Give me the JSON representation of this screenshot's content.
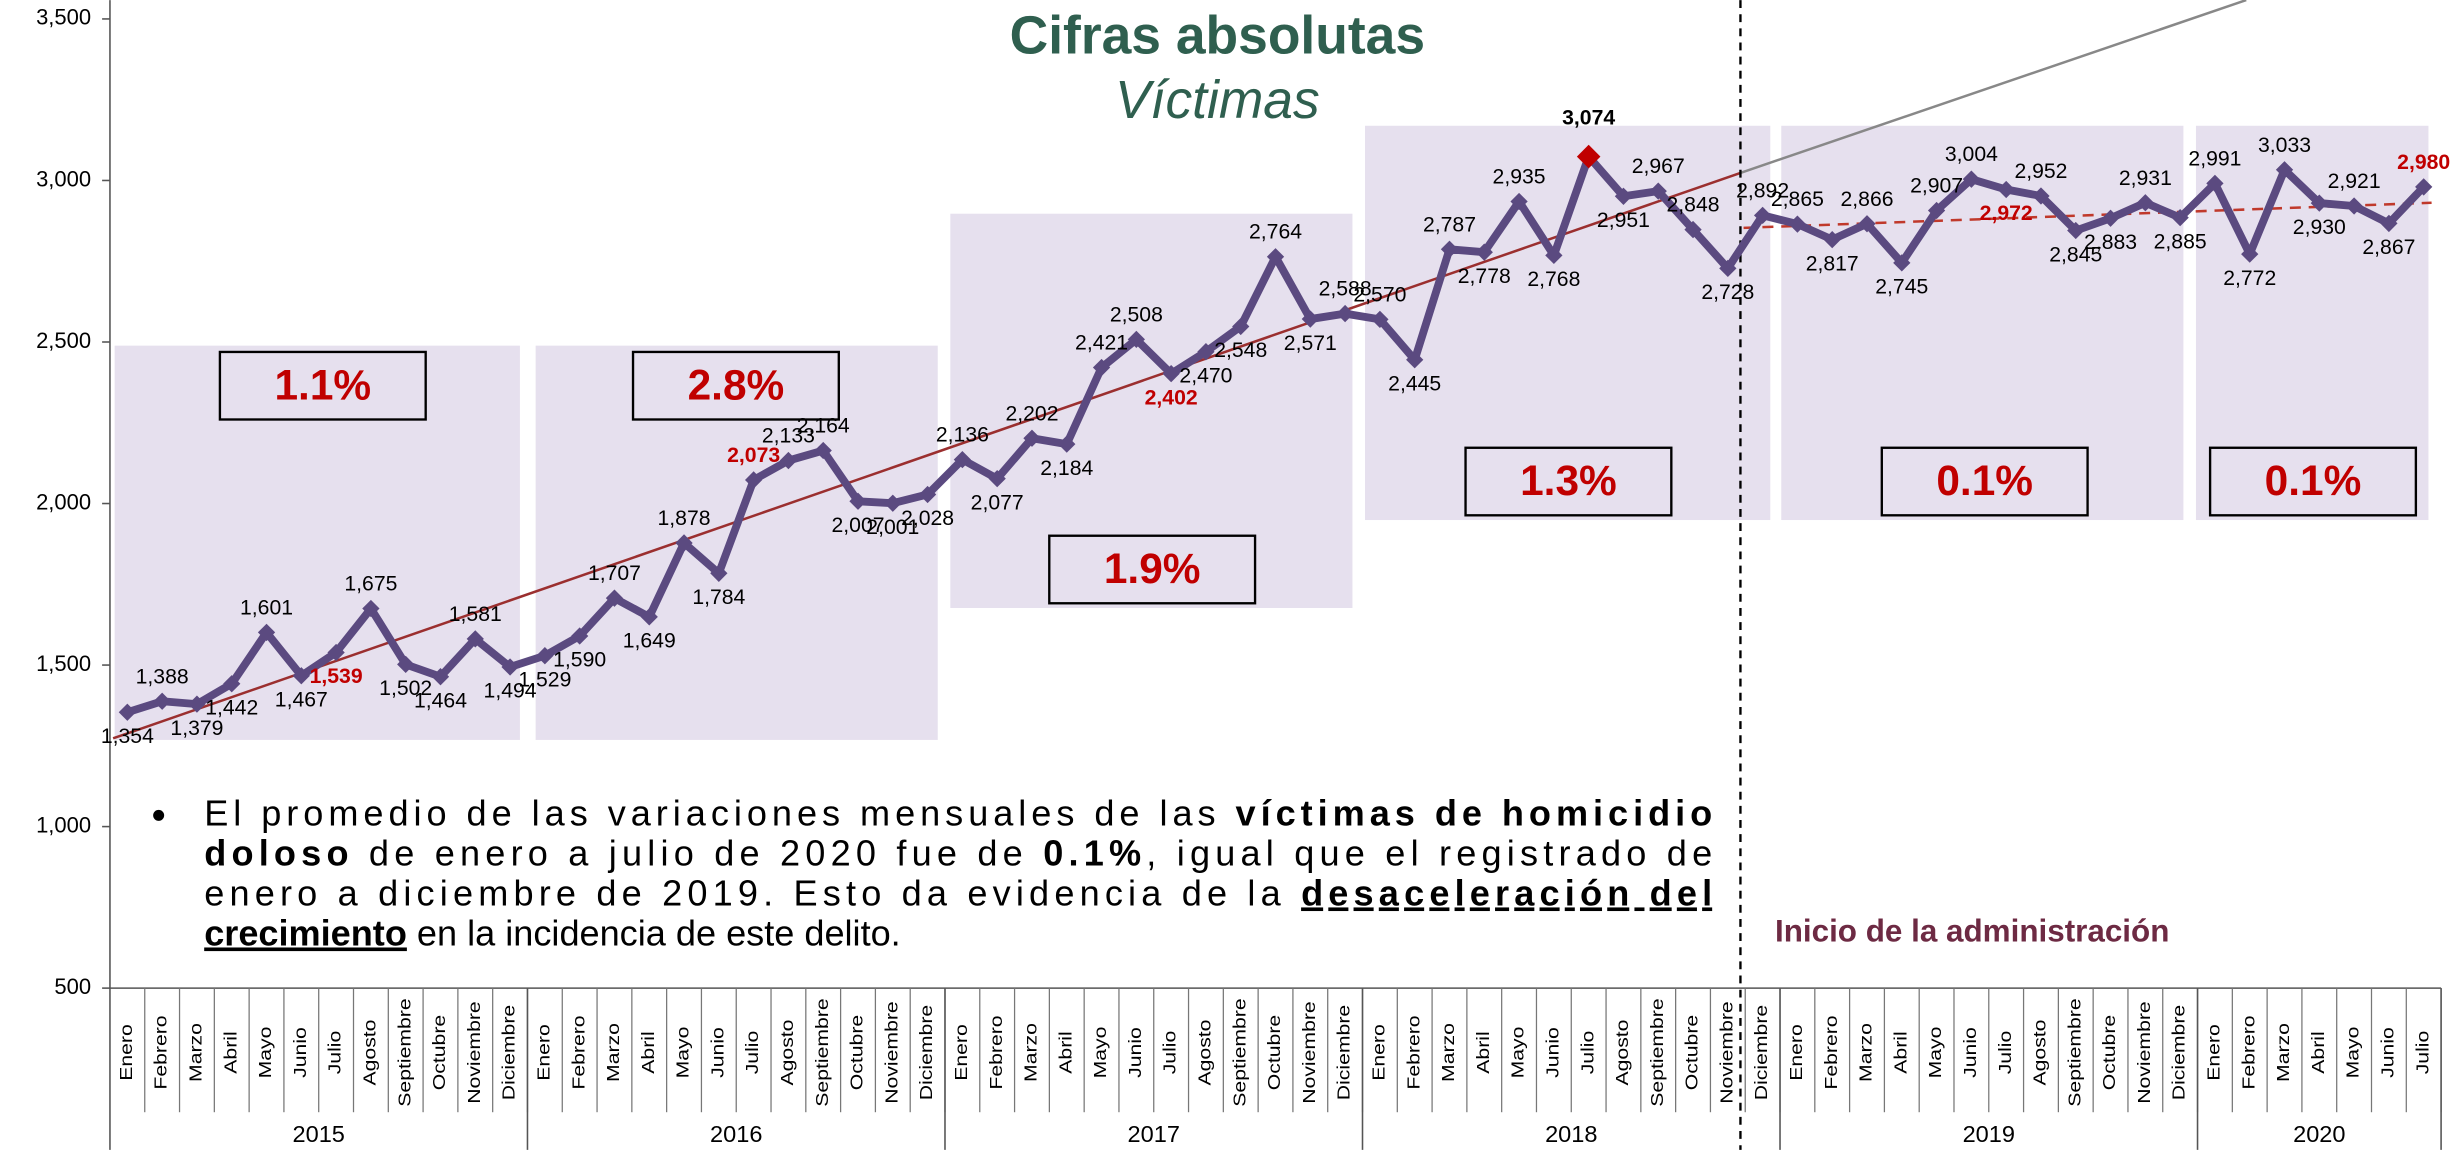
{
  "chart_data": {
    "type": "line",
    "title": "Cifras absolutas",
    "subtitle": "Víctimas",
    "categories": [
      "Enero",
      "Febrero",
      "Marzo",
      "Abril",
      "Mayo",
      "Junio",
      "Julio",
      "Agosto",
      "Septiembre",
      "Octubre",
      "Noviembre",
      "Diciembre",
      "Enero",
      "Febrero",
      "Marzo",
      "Abril",
      "Mayo",
      "Junio",
      "Julio",
      "Agosto",
      "Septiembre",
      "Octubre",
      "Noviembre",
      "Diciembre",
      "Enero",
      "Febrero",
      "Marzo",
      "Abril",
      "Mayo",
      "Junio",
      "Julio",
      "Agosto",
      "Septiembre",
      "Octubre",
      "Noviembre",
      "Diciembre",
      "Enero",
      "Febrero",
      "Marzo",
      "Abril",
      "Mayo",
      "Junio",
      "Julio",
      "Agosto",
      "Septiembre",
      "Octubre",
      "Noviembre",
      "Diciembre",
      "Enero",
      "Febrero",
      "Marzo",
      "Abril",
      "Mayo",
      "Junio",
      "Julio",
      "Agosto",
      "Septiembre",
      "Octubre",
      "Noviembre",
      "Diciembre",
      "Enero",
      "Febrero",
      "Marzo",
      "Abril",
      "Mayo",
      "Junio",
      "Julio"
    ],
    "year_groups": [
      "2015",
      "2016",
      "2017",
      "2018",
      "2019",
      "2020"
    ],
    "series": [
      {
        "color": "#5b4a80",
        "values": [
          1354,
          1388,
          1379,
          1442,
          1601,
          1467,
          1539,
          1675,
          1502,
          1464,
          1581,
          1494,
          1529,
          1590,
          1707,
          1649,
          1878,
          1784,
          2073,
          2133,
          2164,
          2007,
          2001,
          2028,
          2136,
          2077,
          2202,
          2184,
          2421,
          2508,
          2402,
          2470,
          2548,
          2764,
          2571,
          2588,
          2570,
          2445,
          2787,
          2778,
          2935,
          2768,
          3074,
          2951,
          2967,
          2848,
          2728,
          2892,
          2865,
          2817,
          2866,
          2745,
          2907,
          3004,
          2972,
          2952,
          2845,
          2883,
          2931,
          2885,
          2991,
          2772,
          3033,
          2930,
          2921,
          2867,
          2980
        ],
        "value_labels": [
          "1,354",
          "1,388",
          "1,379",
          "1,442",
          "1,601",
          "1,467",
          "1,539",
          "1,675",
          "1,502",
          "1,464",
          "1,581",
          "1,494",
          "1,529",
          "1,590",
          "1,707",
          "1,649",
          "1,878",
          "1,784",
          "2,073",
          "2,133",
          "2,164",
          "2,007",
          "2,001",
          "2,028",
          "2,136",
          "2,077",
          "2,202",
          "2,184",
          "2,421",
          "2,508",
          "2,402",
          "2,470",
          "2,548",
          "2,764",
          "2,571",
          "2,588",
          "2,570",
          "2,445",
          "2,787",
          "2,778",
          "2,935",
          "2,768",
          "3,074",
          "2,951",
          "2,967",
          "2,848",
          "2,728",
          "2,892",
          "2,865",
          "2,817",
          "2,866",
          "2,745",
          "2,907",
          "3,004",
          "2,972",
          "2,952",
          "2,845",
          "2,883",
          "2,931",
          "2,885",
          "2,991",
          "2,772",
          "3,033",
          "2,930",
          "2,921",
          "2,867",
          "2,980"
        ],
        "value_label_colors": [
          "#000000",
          "#000000",
          "#000000",
          "#000000",
          "#000000",
          "#000000",
          "#c00000",
          "#000000",
          "#000000",
          "#000000",
          "#000000",
          "#000000",
          "#000000",
          "#000000",
          "#000000",
          "#000000",
          "#000000",
          "#000000",
          "#c00000",
          "#000000",
          "#000000",
          "#000000",
          "#000000",
          "#000000",
          "#000000",
          "#000000",
          "#000000",
          "#000000",
          "#000000",
          "#000000",
          "#c00000",
          "#000000",
          "#000000",
          "#000000",
          "#000000",
          "#000000",
          "#000000",
          "#000000",
          "#000000",
          "#000000",
          "#000000",
          "#000000",
          "#000000",
          "#000000",
          "#000000",
          "#000000",
          "#000000",
          "#000000",
          "#000000",
          "#000000",
          "#000000",
          "#000000",
          "#000000",
          "#000000",
          "#c00000",
          "#000000",
          "#000000",
          "#000000",
          "#000000",
          "#000000",
          "#000000",
          "#000000",
          "#000000",
          "#000000",
          "#000000",
          "#000000",
          "#c00000"
        ],
        "peak_color": "#c00000"
      }
    ],
    "ylim": [
      500,
      3500
    ],
    "yticks": [
      500,
      {
        "value": 1000,
        "label": "1,000"
      },
      {
        "value": 1500,
        "label": "1,500"
      },
      {
        "value": 2000,
        "label": "2,000"
      },
      {
        "value": 2500,
        "label": "2,500"
      },
      {
        "value": 3000,
        "label": "3,000"
      },
      {
        "value": 3500,
        "label": "3,500"
      }
    ],
    "growth_boxes": [
      "1.1%",
      "2.8%",
      "1.9%",
      "1.3%",
      "0.1%",
      "0.1%"
    ],
    "admin_label": "Inicio de la administración",
    "note": {
      "lines": [
        {
          "parts": [
            {
              "text": "El promedio de las variaciones mensuales de las "
            },
            {
              "text": "víctimas de homicidio",
              "bold": true
            }
          ]
        },
        {
          "parts": [
            {
              "text": "doloso",
              "bold": true
            },
            {
              "text": " de enero a julio de 2020 fue de "
            },
            {
              "text": "0.1%",
              "bold": true
            },
            {
              "text": ", igual que el registrado de"
            }
          ]
        },
        {
          "parts": [
            {
              "text": "enero a diciembre de 2019. Esto da evidencia de la "
            },
            {
              "text": "desaceleración del",
              "bold": true,
              "underline": true
            }
          ]
        },
        {
          "parts": [
            {
              "text": "crecimiento",
              "bold": true,
              "underline": true
            },
            {
              "text": " en la incidencia de este delito."
            }
          ]
        }
      ]
    }
  }
}
